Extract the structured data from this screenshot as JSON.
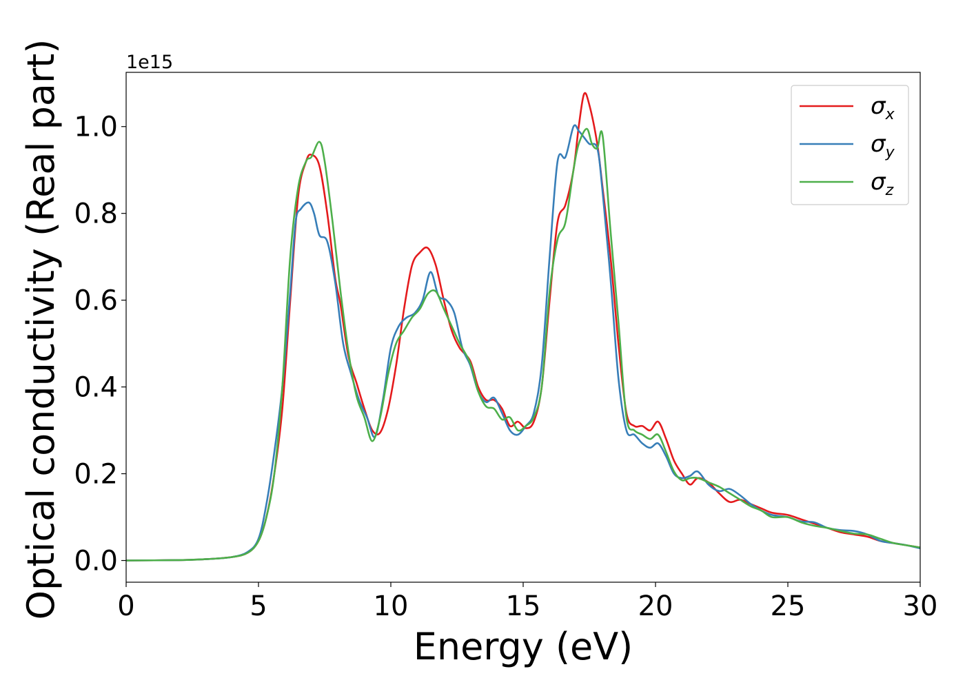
{
  "chart_data": {
    "type": "line",
    "title": "",
    "xlabel": "Energy (eV)",
    "ylabel": "Optical conductivity (Real part)",
    "y_offset_label": "1e15",
    "xlim": [
      0,
      30
    ],
    "ylim": [
      -0.05,
      1.125
    ],
    "x_ticks": [
      0,
      5,
      10,
      15,
      20,
      25,
      30
    ],
    "x_tick_labels": [
      "0",
      "5",
      "10",
      "15",
      "20",
      "25",
      "30"
    ],
    "y_ticks": [
      0.0,
      0.2,
      0.4,
      0.6,
      0.8,
      1.0
    ],
    "y_tick_labels": [
      "0.0",
      "0.2",
      "0.4",
      "0.6",
      "0.8",
      "1.0"
    ],
    "grid": false,
    "legend_position": "top-right",
    "series": [
      {
        "name": "σx",
        "symbol": "σ",
        "subscript": "x",
        "color": "#e41a1c",
        "points": [
          [
            0,
            0
          ],
          [
            2,
            0.001
          ],
          [
            3,
            0.003
          ],
          [
            4,
            0.008
          ],
          [
            4.6,
            0.018
          ],
          [
            5,
            0.045
          ],
          [
            5.3,
            0.1
          ],
          [
            5.6,
            0.2
          ],
          [
            5.9,
            0.35
          ],
          [
            6.2,
            0.6
          ],
          [
            6.5,
            0.84
          ],
          [
            6.8,
            0.92
          ],
          [
            7.0,
            0.935
          ],
          [
            7.3,
            0.91
          ],
          [
            7.6,
            0.8
          ],
          [
            7.9,
            0.65
          ],
          [
            8.1,
            0.59
          ],
          [
            8.4,
            0.47
          ],
          [
            8.7,
            0.41
          ],
          [
            9.0,
            0.35
          ],
          [
            9.3,
            0.3
          ],
          [
            9.6,
            0.295
          ],
          [
            9.9,
            0.35
          ],
          [
            10.2,
            0.45
          ],
          [
            10.5,
            0.58
          ],
          [
            10.8,
            0.68
          ],
          [
            11.1,
            0.71
          ],
          [
            11.4,
            0.72
          ],
          [
            11.7,
            0.68
          ],
          [
            12.0,
            0.6
          ],
          [
            12.3,
            0.53
          ],
          [
            12.6,
            0.49
          ],
          [
            13.0,
            0.46
          ],
          [
            13.3,
            0.4
          ],
          [
            13.6,
            0.37
          ],
          [
            13.9,
            0.37
          ],
          [
            14.2,
            0.35
          ],
          [
            14.5,
            0.31
          ],
          [
            14.8,
            0.32
          ],
          [
            15.1,
            0.305
          ],
          [
            15.4,
            0.32
          ],
          [
            15.7,
            0.4
          ],
          [
            16.0,
            0.6
          ],
          [
            16.3,
            0.78
          ],
          [
            16.6,
            0.82
          ],
          [
            16.9,
            0.9
          ],
          [
            17.1,
            1.0
          ],
          [
            17.3,
            1.075
          ],
          [
            17.5,
            1.05
          ],
          [
            17.8,
            0.96
          ],
          [
            18.0,
            0.86
          ],
          [
            18.3,
            0.7
          ],
          [
            18.6,
            0.5
          ],
          [
            18.9,
            0.34
          ],
          [
            19.2,
            0.31
          ],
          [
            19.5,
            0.31
          ],
          [
            19.8,
            0.3
          ],
          [
            20.1,
            0.32
          ],
          [
            20.4,
            0.28
          ],
          [
            20.7,
            0.23
          ],
          [
            21.0,
            0.2
          ],
          [
            21.3,
            0.175
          ],
          [
            21.6,
            0.19
          ],
          [
            22.0,
            0.18
          ],
          [
            22.4,
            0.155
          ],
          [
            22.8,
            0.135
          ],
          [
            23.2,
            0.14
          ],
          [
            23.6,
            0.13
          ],
          [
            24.0,
            0.12
          ],
          [
            24.4,
            0.11
          ],
          [
            25.0,
            0.105
          ],
          [
            25.5,
            0.095
          ],
          [
            26.0,
            0.085
          ],
          [
            26.5,
            0.075
          ],
          [
            27.0,
            0.065
          ],
          [
            27.5,
            0.06
          ],
          [
            28.0,
            0.055
          ],
          [
            28.5,
            0.045
          ],
          [
            29.0,
            0.04
          ],
          [
            29.5,
            0.035
          ],
          [
            30.0,
            0.03
          ]
        ]
      },
      {
        "name": "σy",
        "symbol": "σ",
        "subscript": "y",
        "color": "#377eb8",
        "points": [
          [
            0,
            0
          ],
          [
            2,
            0.001
          ],
          [
            3,
            0.003
          ],
          [
            4,
            0.008
          ],
          [
            4.6,
            0.02
          ],
          [
            5,
            0.05
          ],
          [
            5.3,
            0.13
          ],
          [
            5.6,
            0.25
          ],
          [
            5.9,
            0.4
          ],
          [
            6.2,
            0.62
          ],
          [
            6.4,
            0.78
          ],
          [
            6.6,
            0.81
          ],
          [
            6.9,
            0.825
          ],
          [
            7.1,
            0.8
          ],
          [
            7.3,
            0.75
          ],
          [
            7.6,
            0.735
          ],
          [
            7.9,
            0.64
          ],
          [
            8.2,
            0.5
          ],
          [
            8.5,
            0.43
          ],
          [
            8.8,
            0.37
          ],
          [
            9.1,
            0.33
          ],
          [
            9.4,
            0.285
          ],
          [
            9.7,
            0.37
          ],
          [
            10.0,
            0.49
          ],
          [
            10.3,
            0.54
          ],
          [
            10.6,
            0.56
          ],
          [
            10.9,
            0.57
          ],
          [
            11.2,
            0.6
          ],
          [
            11.5,
            0.665
          ],
          [
            11.8,
            0.61
          ],
          [
            12.1,
            0.6
          ],
          [
            12.4,
            0.57
          ],
          [
            12.7,
            0.49
          ],
          [
            13.0,
            0.45
          ],
          [
            13.3,
            0.39
          ],
          [
            13.6,
            0.365
          ],
          [
            13.9,
            0.375
          ],
          [
            14.2,
            0.34
          ],
          [
            14.5,
            0.3
          ],
          [
            14.8,
            0.29
          ],
          [
            15.1,
            0.31
          ],
          [
            15.4,
            0.34
          ],
          [
            15.7,
            0.45
          ],
          [
            16.0,
            0.7
          ],
          [
            16.3,
            0.92
          ],
          [
            16.6,
            0.93
          ],
          [
            16.9,
            1.0
          ],
          [
            17.1,
            0.99
          ],
          [
            17.3,
            0.975
          ],
          [
            17.5,
            0.96
          ],
          [
            17.8,
            0.95
          ],
          [
            18.0,
            0.85
          ],
          [
            18.3,
            0.65
          ],
          [
            18.6,
            0.42
          ],
          [
            18.9,
            0.3
          ],
          [
            19.2,
            0.29
          ],
          [
            19.5,
            0.27
          ],
          [
            19.8,
            0.26
          ],
          [
            20.1,
            0.27
          ],
          [
            20.4,
            0.24
          ],
          [
            20.7,
            0.2
          ],
          [
            21.0,
            0.19
          ],
          [
            21.3,
            0.195
          ],
          [
            21.6,
            0.205
          ],
          [
            22.0,
            0.175
          ],
          [
            22.4,
            0.16
          ],
          [
            22.8,
            0.165
          ],
          [
            23.2,
            0.15
          ],
          [
            23.6,
            0.13
          ],
          [
            24.0,
            0.115
          ],
          [
            24.4,
            0.105
          ],
          [
            25.0,
            0.1
          ],
          [
            25.5,
            0.09
          ],
          [
            26.0,
            0.088
          ],
          [
            26.5,
            0.075
          ],
          [
            27.0,
            0.07
          ],
          [
            27.5,
            0.068
          ],
          [
            28.0,
            0.06
          ],
          [
            28.5,
            0.045
          ],
          [
            29.0,
            0.04
          ],
          [
            29.5,
            0.035
          ],
          [
            30.0,
            0.028
          ]
        ]
      },
      {
        "name": "σz",
        "symbol": "σ",
        "subscript": "z",
        "color": "#4daf4a",
        "points": [
          [
            0,
            0
          ],
          [
            2,
            0.001
          ],
          [
            3,
            0.003
          ],
          [
            4,
            0.008
          ],
          [
            4.6,
            0.018
          ],
          [
            5,
            0.045
          ],
          [
            5.3,
            0.1
          ],
          [
            5.6,
            0.2
          ],
          [
            5.9,
            0.4
          ],
          [
            6.2,
            0.7
          ],
          [
            6.5,
            0.86
          ],
          [
            6.8,
            0.92
          ],
          [
            7.0,
            0.93
          ],
          [
            7.3,
            0.965
          ],
          [
            7.5,
            0.92
          ],
          [
            7.8,
            0.78
          ],
          [
            8.1,
            0.62
          ],
          [
            8.4,
            0.48
          ],
          [
            8.7,
            0.38
          ],
          [
            9.0,
            0.33
          ],
          [
            9.3,
            0.275
          ],
          [
            9.6,
            0.33
          ],
          [
            9.9,
            0.43
          ],
          [
            10.2,
            0.5
          ],
          [
            10.5,
            0.53
          ],
          [
            10.8,
            0.56
          ],
          [
            11.1,
            0.58
          ],
          [
            11.4,
            0.615
          ],
          [
            11.7,
            0.62
          ],
          [
            12.0,
            0.58
          ],
          [
            12.3,
            0.54
          ],
          [
            12.6,
            0.5
          ],
          [
            13.0,
            0.455
          ],
          [
            13.3,
            0.39
          ],
          [
            13.6,
            0.355
          ],
          [
            13.9,
            0.35
          ],
          [
            14.2,
            0.325
          ],
          [
            14.5,
            0.33
          ],
          [
            14.8,
            0.3
          ],
          [
            15.1,
            0.31
          ],
          [
            15.4,
            0.33
          ],
          [
            15.7,
            0.4
          ],
          [
            16.0,
            0.62
          ],
          [
            16.3,
            0.74
          ],
          [
            16.6,
            0.78
          ],
          [
            16.9,
            0.9
          ],
          [
            17.1,
            0.96
          ],
          [
            17.4,
            0.995
          ],
          [
            17.6,
            0.96
          ],
          [
            17.8,
            0.95
          ],
          [
            18.0,
            0.98
          ],
          [
            18.3,
            0.76
          ],
          [
            18.6,
            0.55
          ],
          [
            18.9,
            0.33
          ],
          [
            19.2,
            0.3
          ],
          [
            19.5,
            0.29
          ],
          [
            19.8,
            0.28
          ],
          [
            20.1,
            0.29
          ],
          [
            20.4,
            0.25
          ],
          [
            20.7,
            0.205
          ],
          [
            21.0,
            0.185
          ],
          [
            21.3,
            0.19
          ],
          [
            21.6,
            0.19
          ],
          [
            22.0,
            0.18
          ],
          [
            22.4,
            0.17
          ],
          [
            22.8,
            0.155
          ],
          [
            23.2,
            0.14
          ],
          [
            23.6,
            0.125
          ],
          [
            24.0,
            0.115
          ],
          [
            24.4,
            0.1
          ],
          [
            25.0,
            0.1
          ],
          [
            25.5,
            0.088
          ],
          [
            26.0,
            0.08
          ],
          [
            26.5,
            0.075
          ],
          [
            27.0,
            0.068
          ],
          [
            27.5,
            0.062
          ],
          [
            28.0,
            0.06
          ],
          [
            28.5,
            0.05
          ],
          [
            29.0,
            0.04
          ],
          [
            29.5,
            0.035
          ],
          [
            30.0,
            0.03
          ]
        ]
      }
    ]
  }
}
